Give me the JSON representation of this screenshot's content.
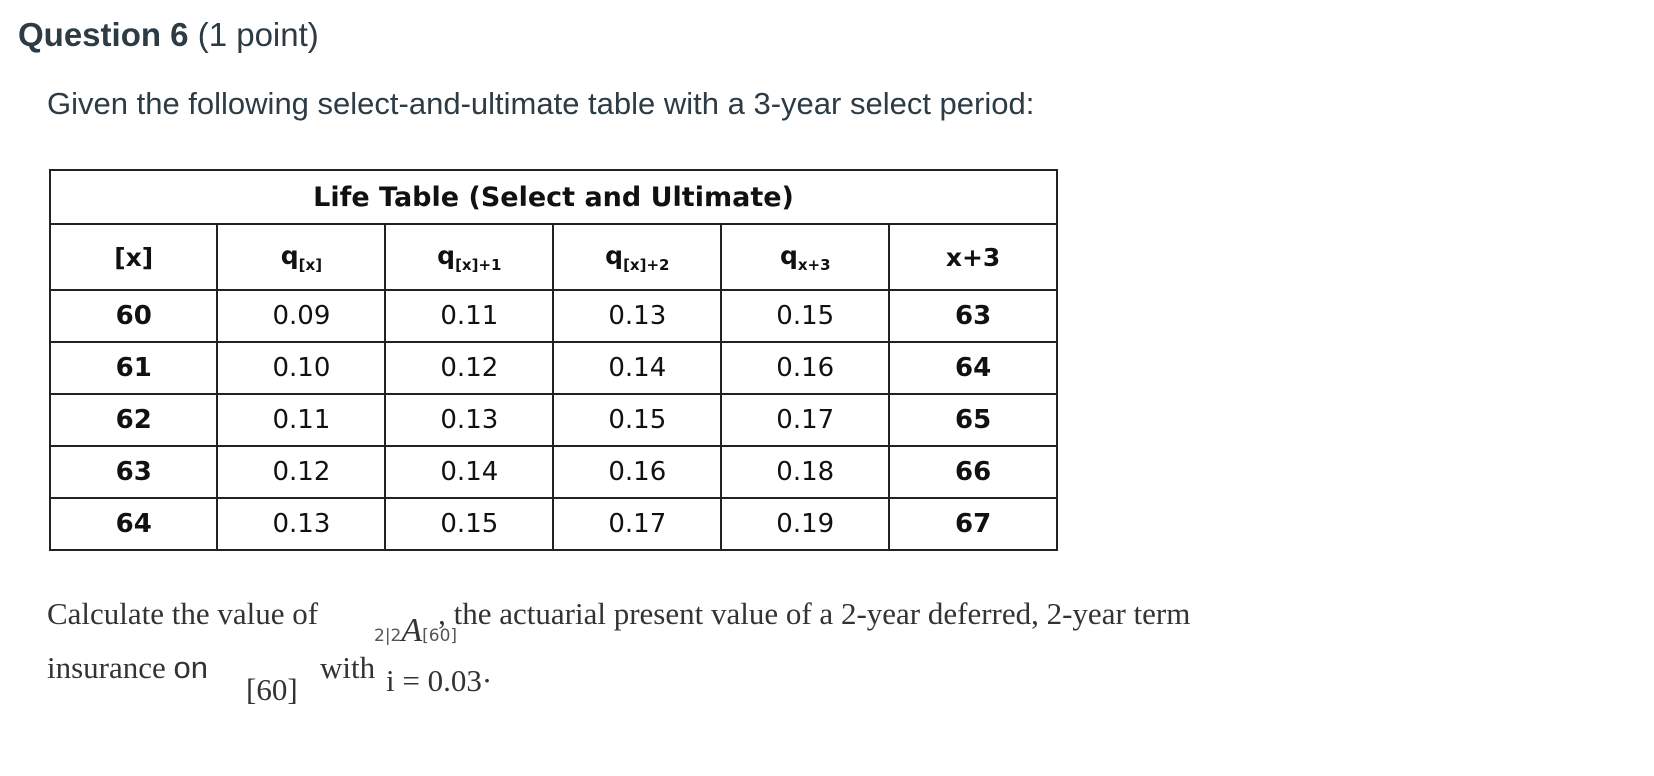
{
  "question": {
    "label": "Question 6",
    "points": "(1 point)"
  },
  "prompt": "Given the following select-and-ultimate table with a 3-year select period:",
  "table": {
    "title": "Life Table (Select and Ultimate)",
    "headers": [
      {
        "main": "[x]",
        "sub": ""
      },
      {
        "main": "q",
        "sub": "[x]"
      },
      {
        "main": "q",
        "sub": "[x]+1"
      },
      {
        "main": "q",
        "sub": "[x]+2"
      },
      {
        "main": "q",
        "sub": "x+3"
      },
      {
        "main": "x+3",
        "sub": ""
      }
    ],
    "rows": [
      [
        "60",
        "0.09",
        "0.11",
        "0.13",
        "0.15",
        "63"
      ],
      [
        "61",
        "0.10",
        "0.12",
        "0.14",
        "0.16",
        "64"
      ],
      [
        "62",
        "0.11",
        "0.13",
        "0.15",
        "0.17",
        "65"
      ],
      [
        "63",
        "0.12",
        "0.14",
        "0.16",
        "0.18",
        "66"
      ],
      [
        "64",
        "0.13",
        "0.15",
        "0.17",
        "0.19",
        "67"
      ]
    ]
  },
  "calc": {
    "line1_a": "Calculate the value of",
    "line1_b": ", the actuarial present value of a 2-year deferred, 2-year term",
    "line2_a": "insurance",
    "line2_on": "on",
    "life": "[60]",
    "with": "with",
    "symbol_pre": "2|2",
    "symbol": "A",
    "symbol_sub": "[60]",
    "rate": "i = 0.03",
    "period": "·"
  }
}
